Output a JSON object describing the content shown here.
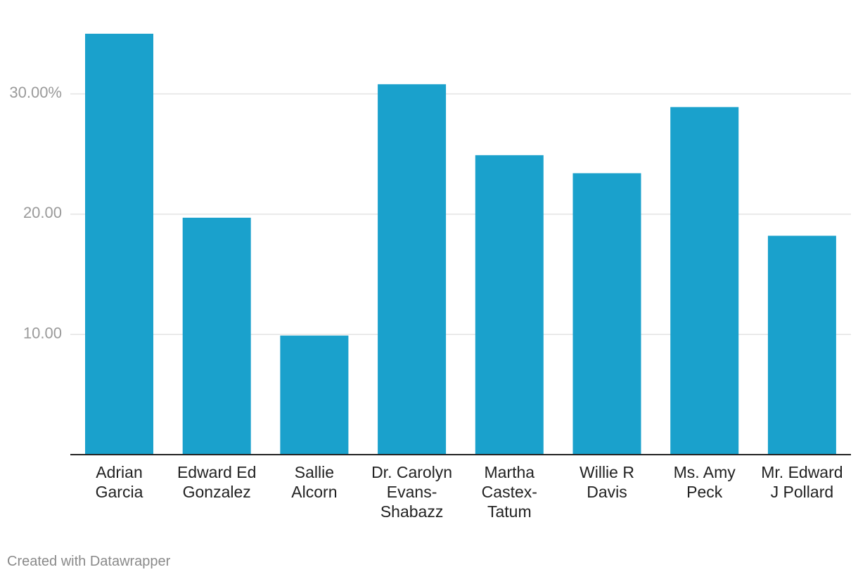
{
  "chart_data": {
    "type": "bar",
    "categories": [
      [
        "Adrian",
        "Garcia"
      ],
      [
        "Edward Ed",
        "Gonzalez"
      ],
      [
        "Sallie",
        "Alcorn"
      ],
      [
        "Dr. Carolyn",
        "Evans-",
        "Shabazz"
      ],
      [
        "Martha",
        "Castex-",
        "Tatum"
      ],
      [
        "Willie R",
        "Davis"
      ],
      [
        "Ms. Amy",
        "Peck"
      ],
      [
        "Mr. Edward",
        "J Pollard"
      ]
    ],
    "values": [
      35.0,
      19.7,
      9.9,
      30.8,
      24.9,
      23.4,
      28.9,
      18.2
    ],
    "ylim": [
      0,
      35
    ],
    "y_ticks": [
      {
        "value": 10,
        "label": "10.00"
      },
      {
        "value": 20,
        "label": "20.00"
      },
      {
        "value": 30,
        "label": "30.00%"
      }
    ],
    "grid": true,
    "bar_color": "#1aa1cc",
    "grid_color": "#e3e3e3",
    "tick_label_color": "#9a9a9a",
    "category_label_color": "#222222"
  },
  "footer": {
    "credit": "Created with Datawrapper"
  }
}
